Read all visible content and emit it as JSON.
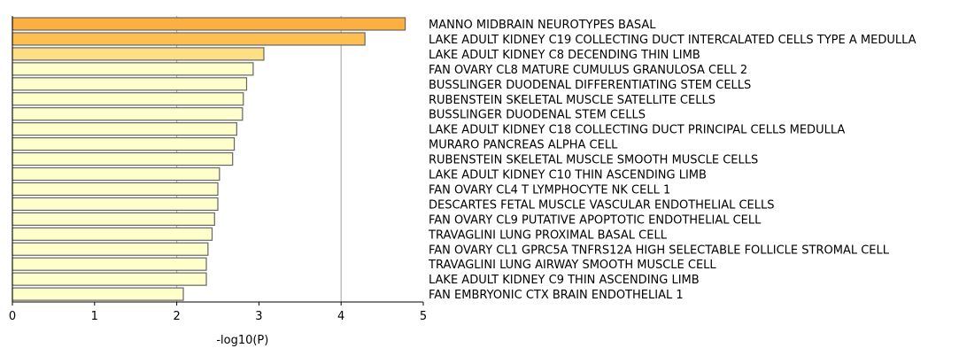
{
  "chart_data": {
    "type": "bar",
    "orientation": "horizontal",
    "xlabel": "-log10(P)",
    "xlim": [
      0,
      5
    ],
    "x_ticks": [
      "0",
      "1",
      "2",
      "3",
      "4",
      "5"
    ],
    "grid": "vertical lines at x = 2 and x = 4",
    "categories": [
      "MANNO MIDBRAIN NEUROTYPES BASAL",
      "LAKE ADULT KIDNEY C19 COLLECTING DUCT INTERCALATED CELLS TYPE A MEDULLA",
      "LAKE ADULT KIDNEY C8 DECENDING THIN LIMB",
      "FAN OVARY CL8 MATURE CUMULUS GRANULOSA CELL 2",
      "BUSSLINGER DUODENAL DIFFERENTIATING STEM CELLS",
      "RUBENSTEIN SKELETAL MUSCLE SATELLITE CELLS",
      "BUSSLINGER DUODENAL STEM CELLS",
      "LAKE ADULT KIDNEY C18 COLLECTING DUCT PRINCIPAL CELLS MEDULLA",
      "MURARO PANCREAS ALPHA CELL",
      "RUBENSTEIN SKELETAL MUSCLE SMOOTH MUSCLE CELLS",
      "LAKE ADULT KIDNEY C10 THIN ASCENDING LIMB",
      "FAN OVARY CL4 T LYMPHOCYTE NK CELL 1",
      "DESCARTES FETAL MUSCLE VASCULAR ENDOTHELIAL CELLS",
      "FAN OVARY CL9 PUTATIVE APOPTOTIC ENDOTHELIAL CELL",
      "TRAVAGLINI LUNG PROXIMAL BASAL CELL",
      "FAN OVARY CL1 GPRC5A TNFRS12A HIGH SELECTABLE FOLLICLE STROMAL CELL",
      "TRAVAGLINI LUNG AIRWAY SMOOTH MUSCLE CELL",
      "LAKE ADULT KIDNEY C9 THIN ASCENDING LIMB",
      "FAN EMBRYONIC CTX BRAIN ENDOTHELIAL 1"
    ],
    "values": [
      4.78,
      4.29,
      3.06,
      2.93,
      2.85,
      2.81,
      2.8,
      2.73,
      2.7,
      2.68,
      2.52,
      2.5,
      2.5,
      2.46,
      2.43,
      2.38,
      2.36,
      2.36,
      2.08
    ],
    "bar_colors": [
      "#fdb040",
      "#fdbf50",
      "#fedf86",
      "#ffffcc",
      "#ffffcc",
      "#ffffcc",
      "#ffffcc",
      "#ffffcc",
      "#ffffcc",
      "#ffffcc",
      "#ffffcc",
      "#ffffcc",
      "#ffffcc",
      "#ffffcc",
      "#ffffcc",
      "#ffffcc",
      "#ffffcc",
      "#ffffcc",
      "#ffffcc"
    ],
    "bar_edge_color": "#666666",
    "grid_color": "#b0b0b0"
  }
}
